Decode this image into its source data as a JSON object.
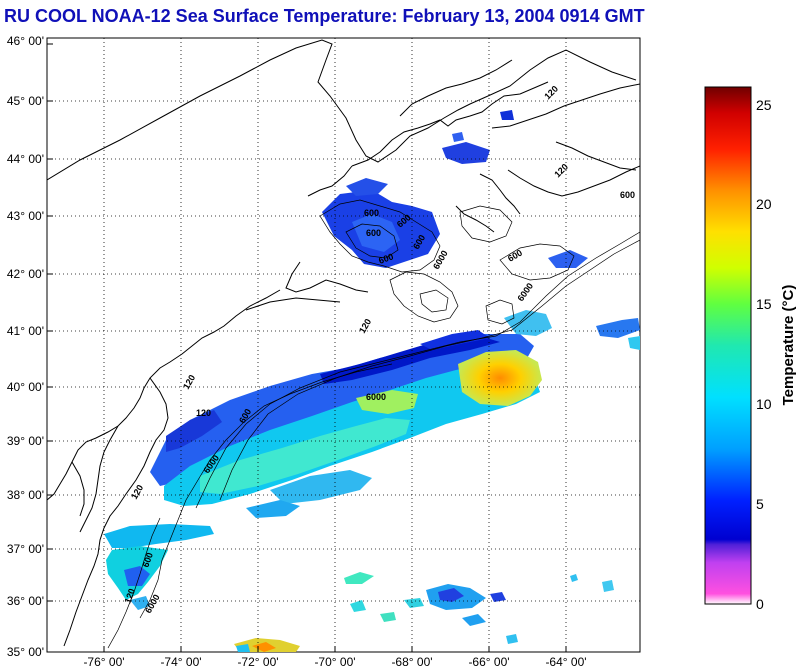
{
  "title": "RU COOL  NOAA-12  Sea Surface Temperature:  February 13, 2004 0914 GMT",
  "lat_labels": [
    "46° 00'",
    "45° 00'",
    "44° 00'",
    "43° 00'",
    "42° 00'",
    "41° 00'",
    "40° 00'",
    "39° 00'",
    "38° 00'",
    "37° 00'",
    "36° 00'",
    "35° 00'"
  ],
  "lon_labels": [
    "-76° 00'",
    "-74° 00'",
    "-72° 00'",
    "-70° 00'",
    "-68° 00'",
    "-66° 00'",
    "-64° 00'"
  ],
  "colorbar": {
    "label": "Temperature (°C)",
    "ticks": [
      "25",
      "20",
      "15",
      "10",
      "5",
      "0"
    ],
    "min": 0,
    "max": 26
  },
  "isobath_labels": [
    "600",
    "600",
    "600",
    "600",
    "600",
    "6000",
    "600",
    "6000",
    "120",
    "120",
    "120",
    "600",
    "6000",
    "120",
    "6000",
    "600",
    "120",
    "6000",
    "120",
    "120",
    "600"
  ]
}
